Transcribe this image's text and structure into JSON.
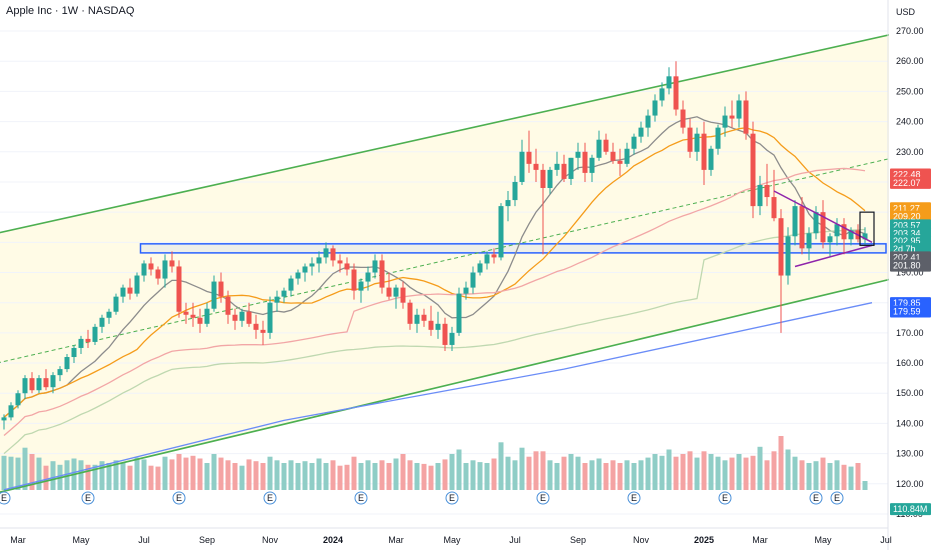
{
  "header": {
    "title": "Apple Inc · 1W · NASDAQ",
    "currency": "USD"
  },
  "colors": {
    "up": "#26a69a",
    "down": "#ef5350",
    "vol_up": "#8fcdc6",
    "vol_down": "#f4a3a3",
    "channel": "#4caf50",
    "channel_fill": "#fffbe6",
    "sma10": "#8c8c8c",
    "sma20": "#f59c1a",
    "sma50": "#f2a6a6",
    "sma100": "#bfd8b0",
    "sma200": "#6a8cf7",
    "box": "#2962ff",
    "triangle": "#8e24aa"
  },
  "chart_data": {
    "type": "candlestick",
    "ylim": [
      108,
      273
    ],
    "y_ticks": [
      110,
      120,
      130,
      140,
      150,
      160,
      170,
      180,
      190,
      200,
      210,
      220,
      230,
      240,
      250,
      260,
      270
    ],
    "x_labels": [
      {
        "label": "Mar",
        "idx": 2
      },
      {
        "label": "May",
        "idx": 11
      },
      {
        "label": "Jul",
        "idx": 20
      },
      {
        "label": "Sep",
        "idx": 29
      },
      {
        "label": "Nov",
        "idx": 38
      },
      {
        "label": "2024",
        "idx": 47
      },
      {
        "label": "Mar",
        "idx": 56
      },
      {
        "label": "May",
        "idx": 64
      },
      {
        "label": "Jul",
        "idx": 73
      },
      {
        "label": "Sep",
        "idx": 82
      },
      {
        "label": "Nov",
        "idx": 91
      },
      {
        "label": "2025",
        "idx": 100
      },
      {
        "label": "Mar",
        "idx": 108
      },
      {
        "label": "May",
        "idx": 117
      },
      {
        "label": "Jul",
        "idx": 126
      }
    ],
    "x_start": 0,
    "x_step": 7,
    "candles": [
      [
        141,
        143,
        138,
        142,
        0.38
      ],
      [
        142,
        147,
        141,
        146,
        0.37
      ],
      [
        146,
        151,
        145,
        150,
        0.36
      ],
      [
        150,
        156,
        148,
        155,
        0.47
      ],
      [
        155,
        157,
        150,
        151,
        0.4
      ],
      [
        151,
        156,
        150,
        155,
        0.36
      ],
      [
        155,
        158,
        151,
        152,
        0.27
      ],
      [
        152,
        157,
        150,
        156,
        0.32
      ],
      [
        156,
        159,
        154,
        158,
        0.28
      ],
      [
        158,
        163,
        157,
        162,
        0.33
      ],
      [
        162,
        166,
        160,
        165,
        0.35
      ],
      [
        165,
        169,
        163,
        168,
        0.33
      ],
      [
        168,
        171,
        165,
        167,
        0.28
      ],
      [
        167,
        173,
        166,
        172,
        0.28
      ],
      [
        172,
        176,
        170,
        175,
        0.32
      ],
      [
        175,
        178,
        173,
        177,
        0.3
      ],
      [
        177,
        183,
        176,
        182,
        0.33
      ],
      [
        182,
        186,
        180,
        185,
        0.3
      ],
      [
        185,
        188,
        181,
        183,
        0.27
      ],
      [
        183,
        190,
        182,
        189,
        0.36
      ],
      [
        189,
        194,
        187,
        193,
        0.34
      ],
      [
        193,
        195,
        189,
        191,
        0.27
      ],
      [
        191,
        192,
        186,
        188,
        0.26
      ],
      [
        188,
        196,
        185,
        194,
        0.37
      ],
      [
        194,
        197,
        190,
        192,
        0.34
      ],
      [
        192,
        194,
        175,
        177,
        0.4
      ],
      [
        177,
        180,
        173,
        176,
        0.36
      ],
      [
        176,
        180,
        172,
        175,
        0.38
      ],
      [
        175,
        178,
        170,
        173,
        0.35
      ],
      [
        173,
        180,
        172,
        178,
        0.3
      ],
      [
        178,
        189,
        177,
        187,
        0.4
      ],
      [
        187,
        190,
        180,
        182,
        0.36
      ],
      [
        182,
        184,
        173,
        176,
        0.33
      ],
      [
        176,
        178,
        171,
        174,
        0.3
      ],
      [
        174,
        178,
        172,
        177,
        0.27
      ],
      [
        177,
        180,
        172,
        173,
        0.34
      ],
      [
        173,
        176,
        168,
        171,
        0.32
      ],
      [
        171,
        174,
        166,
        170,
        0.3
      ],
      [
        170,
        182,
        168,
        180,
        0.37
      ],
      [
        180,
        184,
        177,
        182,
        0.33
      ],
      [
        182,
        185,
        180,
        184,
        0.3
      ],
      [
        184,
        189,
        182,
        188,
        0.33
      ],
      [
        188,
        191,
        186,
        190,
        0.3
      ],
      [
        190,
        193,
        187,
        192,
        0.32
      ],
      [
        192,
        195,
        189,
        193,
        0.3
      ],
      [
        193,
        197,
        190,
        195,
        0.35
      ],
      [
        195,
        200,
        193,
        198,
        0.3
      ],
      [
        198,
        199,
        192,
        194,
        0.33
      ],
      [
        194,
        196,
        190,
        193,
        0.27
      ],
      [
        193,
        195,
        189,
        191,
        0.28
      ],
      [
        191,
        193,
        181,
        184,
        0.37
      ],
      [
        184,
        188,
        180,
        187,
        0.3
      ],
      [
        187,
        192,
        184,
        190,
        0.33
      ],
      [
        190,
        196,
        188,
        194,
        0.3
      ],
      [
        194,
        196,
        183,
        185,
        0.33
      ],
      [
        185,
        190,
        181,
        182,
        0.3
      ],
      [
        182,
        186,
        178,
        185,
        0.35
      ],
      [
        185,
        187,
        178,
        180,
        0.4
      ],
      [
        180,
        181,
        171,
        173,
        0.33
      ],
      [
        173,
        178,
        170,
        176,
        0.3
      ],
      [
        176,
        178,
        172,
        174,
        0.29
      ],
      [
        174,
        179,
        169,
        171,
        0.27
      ],
      [
        171,
        177,
        168,
        173,
        0.3
      ],
      [
        173,
        175,
        164,
        166,
        0.34
      ],
      [
        166,
        172,
        164,
        170,
        0.4
      ],
      [
        170,
        185,
        169,
        183,
        0.45
      ],
      [
        183,
        187,
        181,
        185,
        0.3
      ],
      [
        185,
        192,
        183,
        190,
        0.33
      ],
      [
        190,
        194,
        189,
        193,
        0.31
      ],
      [
        193,
        197,
        191,
        196,
        0.3
      ],
      [
        196,
        198,
        193,
        195,
        0.35
      ],
      [
        195,
        213,
        194,
        212,
        0.53
      ],
      [
        212,
        217,
        207,
        214,
        0.37
      ],
      [
        214,
        222,
        212,
        220,
        0.33
      ],
      [
        220,
        234,
        219,
        230,
        0.47
      ],
      [
        230,
        237,
        223,
        226,
        0.37
      ],
      [
        226,
        231,
        220,
        224,
        0.43
      ],
      [
        224,
        226,
        196,
        218,
        0.43
      ],
      [
        218,
        225,
        216,
        224,
        0.33
      ],
      [
        224,
        230,
        222,
        226,
        0.3
      ],
      [
        226,
        229,
        220,
        221,
        0.37
      ],
      [
        221,
        228,
        219,
        228,
        0.4
      ],
      [
        228,
        233,
        224,
        230,
        0.37
      ],
      [
        230,
        233,
        220,
        223,
        0.3
      ],
      [
        223,
        229,
        220,
        228,
        0.33
      ],
      [
        228,
        237,
        227,
        234,
        0.35
      ],
      [
        234,
        236,
        229,
        230,
        0.3
      ],
      [
        230,
        233,
        226,
        227,
        0.33
      ],
      [
        227,
        231,
        222,
        226,
        0.3
      ],
      [
        226,
        233,
        225,
        231,
        0.33
      ],
      [
        231,
        236,
        229,
        235,
        0.3
      ],
      [
        235,
        240,
        233,
        238,
        0.33
      ],
      [
        238,
        244,
        235,
        242,
        0.36
      ],
      [
        242,
        249,
        240,
        247,
        0.4
      ],
      [
        247,
        253,
        245,
        251,
        0.38
      ],
      [
        251,
        258,
        249,
        255,
        0.45
      ],
      [
        255,
        260,
        242,
        244,
        0.37
      ],
      [
        244,
        247,
        236,
        238,
        0.4
      ],
      [
        238,
        241,
        228,
        230,
        0.43
      ],
      [
        230,
        238,
        227,
        236,
        0.36
      ],
      [
        236,
        240,
        219,
        224,
        0.43
      ],
      [
        224,
        232,
        222,
        231,
        0.4
      ],
      [
        231,
        239,
        229,
        238,
        0.37
      ],
      [
        238,
        245,
        235,
        242,
        0.33
      ],
      [
        242,
        247,
        238,
        241,
        0.36
      ],
      [
        241,
        249,
        238,
        247,
        0.4
      ],
      [
        247,
        250,
        234,
        236,
        0.36
      ],
      [
        236,
        240,
        208,
        212,
        0.38
      ],
      [
        212,
        222,
        209,
        219,
        0.48
      ],
      [
        219,
        226,
        212,
        215,
        0.33
      ],
      [
        215,
        224,
        207,
        208,
        0.43
      ],
      [
        208,
        211,
        170,
        189,
        0.6
      ],
      [
        189,
        205,
        186,
        202,
        0.45
      ],
      [
        202,
        214,
        199,
        212,
        0.37
      ],
      [
        212,
        215,
        196,
        198,
        0.33
      ],
      [
        198,
        205,
        194,
        203,
        0.3
      ],
      [
        203,
        212,
        201,
        210,
        0.32
      ],
      [
        210,
        214,
        198,
        200,
        0.36
      ],
      [
        200,
        203,
        195,
        202,
        0.3
      ],
      [
        202,
        208,
        199,
        206,
        0.33
      ],
      [
        206,
        208,
        196,
        201,
        0.28
      ],
      [
        201,
        205,
        199,
        204,
        0.26
      ],
      [
        204,
        206,
        200,
        201,
        0.3
      ],
      [
        201,
        205,
        199,
        202.95,
        0.1
      ]
    ],
    "sma": [
      {
        "period": 10,
        "color_key": "sma10"
      },
      {
        "period": 20,
        "color_key": "sma20"
      },
      {
        "period": 50,
        "color_key": "sma50"
      },
      {
        "period": 100,
        "color_key": "sma100"
      },
      {
        "period": 200,
        "color_key": "sma200",
        "anchor": [
          [
            0,
            118
          ],
          [
            40,
            141
          ],
          [
            80,
            158
          ],
          [
            110,
            173
          ],
          [
            124,
            180
          ]
        ]
      }
    ],
    "channel": {
      "upper": [
        [
          -1,
          203
        ],
        [
          127,
          269
        ]
      ],
      "lower": [
        [
          -1,
          117
        ],
        [
          127,
          188
        ]
      ],
      "mid": [
        [
          -1,
          160
        ],
        [
          127,
          228
        ]
      ]
    },
    "support_box": {
      "top": 199.5,
      "bottom": 196.5,
      "i0": 19.5,
      "i1": 126
    },
    "triangle": {
      "top": [
        [
          110,
          217
        ],
        [
          124,
          200
        ]
      ],
      "bottom": [
        [
          113,
          192
        ],
        [
          124,
          199
        ]
      ]
    },
    "price_labels": [
      {
        "text": "270.00",
        "y": 270,
        "kind": "tick"
      },
      {
        "text": "222.48",
        "y": 222.48,
        "color": "#ef5350"
      },
      {
        "text": "222.07",
        "y": 219.7,
        "color": "#ef5350"
      },
      {
        "text": "211.27",
        "y": 211.27,
        "color": "#f59c1a"
      },
      {
        "text": "209.20",
        "y": 208.5,
        "color": "#f59c1a"
      },
      {
        "text": "203.57",
        "y": 205.6,
        "color": "#26a69a"
      },
      {
        "text": "203.34",
        "y": 202.9,
        "color": "#26a69a"
      },
      {
        "text": "202.95",
        "y": 200.4,
        "color": "#26a69a"
      },
      {
        "text": "2d 7h",
        "y": 197.8,
        "color": "#26a69a"
      },
      {
        "text": "202.41",
        "y": 195.0,
        "color": "#5d6069"
      },
      {
        "text": "201.80",
        "y": 192.3,
        "color": "#5d6069"
      },
      {
        "text": "179.85",
        "y": 179.85,
        "color": "#2962ff"
      },
      {
        "text": "179.59",
        "y": 177.1,
        "color": "#2962ff"
      },
      {
        "text": "110.84M",
        "y": 111.6,
        "color": "#26a69a"
      }
    ],
    "earnings_marker": "E",
    "earnings_idx": [
      0,
      12,
      25,
      38,
      51,
      64,
      77,
      90,
      103,
      116,
      119
    ]
  }
}
